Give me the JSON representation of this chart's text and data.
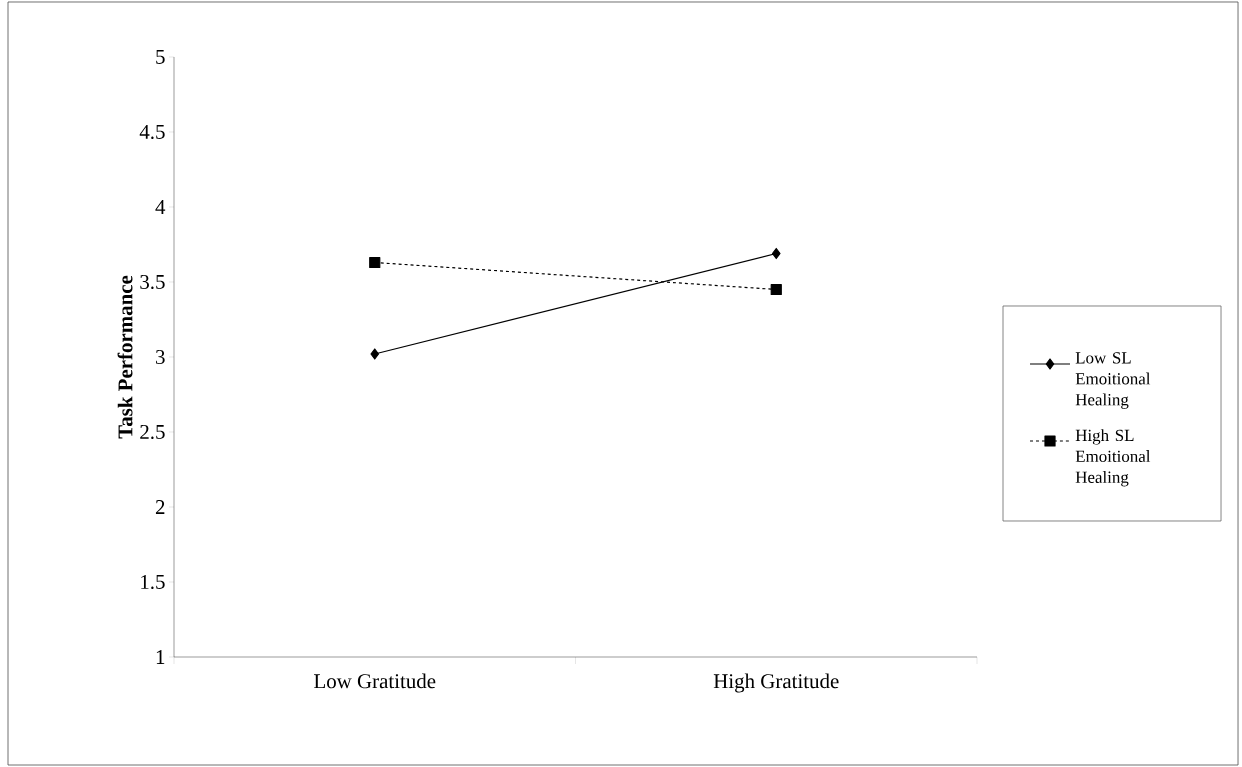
{
  "chart_data": {
    "type": "line",
    "ylabel": "Task Performance",
    "categories": [
      "Low Gratitude",
      "High Gratitude"
    ],
    "series": [
      {
        "name": "Low SL Emoitional Healing",
        "color": "#000000",
        "values": [
          3.02,
          3.69
        ],
        "marker": "diamond",
        "line_style": "solid"
      },
      {
        "name": "High SL Emoitional Healing",
        "color": "#000000",
        "values": [
          3.63,
          3.45
        ],
        "marker": "square",
        "line_style": "dashed"
      }
    ],
    "ylim": [
      1,
      5
    ],
    "yticks": [
      1,
      1.5,
      2,
      2.5,
      3,
      3.5,
      4,
      4.5,
      5
    ],
    "grid": false,
    "legend": "right"
  }
}
